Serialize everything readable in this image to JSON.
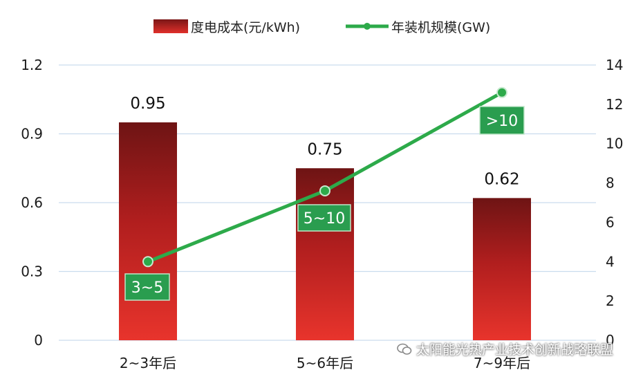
{
  "chart_data": {
    "type": "bar",
    "categories": [
      "2~3年后",
      "5~6年后",
      "7~9年后"
    ],
    "series": [
      {
        "name": "度电成本(元/kWh)",
        "type": "bar",
        "axis": "left",
        "values": [
          0.95,
          0.75,
          0.62
        ],
        "color": "#c8201e"
      },
      {
        "name": "年装机规模(GW)",
        "type": "line",
        "axis": "right",
        "values": [
          4,
          7.6,
          12.6
        ],
        "color": "#2daa4a",
        "point_labels": [
          "3~5",
          "5~10",
          ">10"
        ]
      }
    ],
    "bar_labels": [
      "0.95",
      "0.75",
      "0.62"
    ],
    "y_left": {
      "ticks": [
        "0",
        "0.3",
        "0.6",
        "0.9",
        "1.2"
      ],
      "min": 0,
      "max": 1.2
    },
    "y_right": {
      "ticks": [
        "0",
        "2",
        "4",
        "6",
        "8",
        "10",
        "12",
        "14"
      ],
      "min": 0,
      "max": 14
    },
    "legend_position": "top",
    "grid": true
  },
  "watermark": {
    "text": "太阳能光热产业技术创新战略联盟",
    "icon": "wechat-icon"
  }
}
